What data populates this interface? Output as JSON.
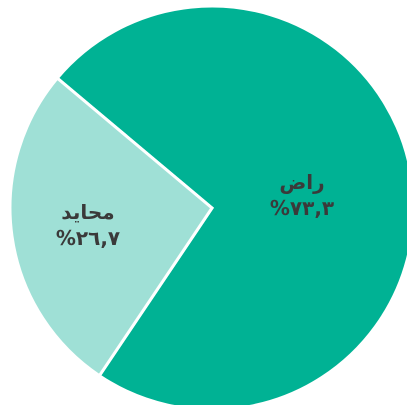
{
  "chart_data": {
    "type": "pie",
    "categories": [
      "راض",
      "محايد"
    ],
    "values": [
      73.3,
      26.7
    ],
    "value_labels": [
      "%٧٣,٣",
      "%٢٦,٧"
    ],
    "colors": [
      "#00b294",
      "#9fe0d6"
    ]
  }
}
